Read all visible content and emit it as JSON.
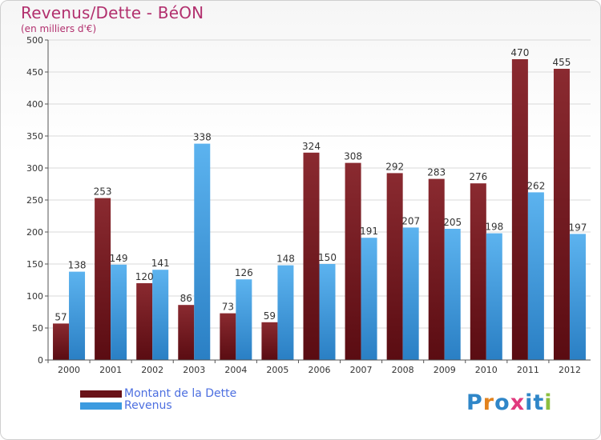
{
  "chart_data": {
    "type": "bar",
    "title": "Revenus/Dette - BéON",
    "subtitle": "(en milliers d'€)",
    "categories": [
      "2000",
      "2001",
      "2002",
      "2003",
      "2004",
      "2005",
      "2006",
      "2007",
      "2008",
      "2009",
      "2010",
      "2011",
      "2012"
    ],
    "series": [
      {
        "name": "Montant de la Dette",
        "color": "#7b1c22",
        "values": [
          57,
          253,
          120,
          86,
          73,
          59,
          324,
          308,
          292,
          283,
          276,
          470,
          455
        ]
      },
      {
        "name": "Revenus",
        "color": "#3c9be0",
        "values": [
          138,
          149,
          141,
          338,
          126,
          148,
          150,
          191,
          207,
          205,
          198,
          262,
          197
        ]
      }
    ],
    "ylim": [
      0,
      500
    ],
    "yticks": [
      0,
      50,
      100,
      150,
      200,
      250,
      300,
      350,
      400,
      450,
      500
    ],
    "grid": true,
    "legend_position": "bottom-left"
  },
  "logo": {
    "text": "Proxiti",
    "letters": [
      "P",
      "r",
      "o",
      "x",
      "i",
      "t",
      "i"
    ],
    "colors": [
      "#2f86c8",
      "#e2831f",
      "#2f86c8",
      "#e13a7e",
      "#2f86c8",
      "#2f86c8",
      "#8cbf3f"
    ]
  }
}
